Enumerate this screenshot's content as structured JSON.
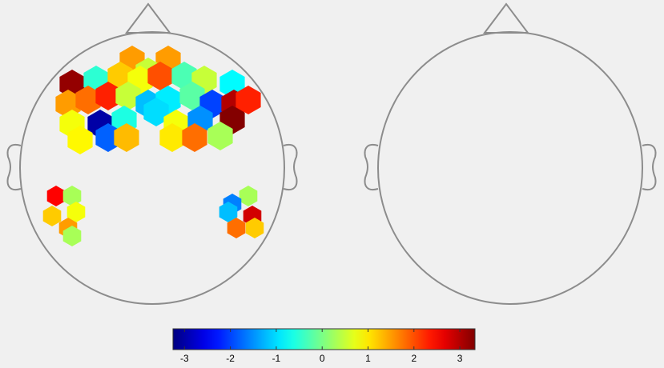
{
  "left_map": {
    "values": [
      1.5,
      1.5,
      0.5,
      3.2,
      -0.5,
      1.2,
      0.8,
      2.0,
      -0.3,
      0.5,
      -0.8,
      1.5,
      1.8,
      2.3,
      0.5,
      -1.2,
      -0.9,
      -0.2,
      -2.0,
      3.0,
      2.3,
      0.8,
      -3.0,
      -0.6,
      -1.0,
      0.8,
      -1.5,
      3.3,
      0.9,
      -1.8,
      1.3,
      1.0,
      1.8,
      0.3,
      2.5,
      0.3,
      0.8,
      1.2,
      1.5,
      0.3,
      0.3,
      -1.6,
      -1.2,
      2.8,
      1.8,
      1.2
    ]
  },
  "colorbar": {
    "clim": [
      -3.25,
      3.33
    ],
    "ticks": [
      -3,
      -2,
      -1,
      0,
      1,
      2,
      3
    ]
  }
}
